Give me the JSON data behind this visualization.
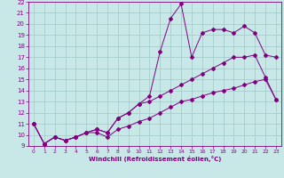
{
  "xlabel": "Windchill (Refroidissement éolien,°C)",
  "bg_color": "#c8e8e8",
  "line_color": "#800080",
  "grid_color": "#a0c8c8",
  "xlim": [
    -0.5,
    23.5
  ],
  "ylim": [
    9,
    22
  ],
  "xticks": [
    0,
    1,
    2,
    3,
    4,
    5,
    6,
    7,
    8,
    9,
    10,
    11,
    12,
    13,
    14,
    15,
    16,
    17,
    18,
    19,
    20,
    21,
    22,
    23
  ],
  "yticks": [
    9,
    10,
    11,
    12,
    13,
    14,
    15,
    16,
    17,
    18,
    19,
    20,
    21,
    22
  ],
  "line1_x": [
    0,
    1,
    2,
    3,
    4,
    5,
    6,
    7,
    8,
    9,
    10,
    11,
    12,
    13,
    14,
    15,
    16,
    17,
    18,
    19,
    20,
    21,
    22,
    23
  ],
  "line1_y": [
    11,
    9.2,
    9.8,
    9.5,
    9.8,
    10.2,
    10.5,
    10.2,
    11.5,
    12.0,
    12.8,
    13.5,
    17.5,
    20.5,
    21.8,
    17.0,
    19.2,
    19.5,
    19.5,
    19.2,
    19.8,
    19.2,
    17.2,
    17.0
  ],
  "line2_x": [
    0,
    1,
    2,
    3,
    4,
    5,
    6,
    7,
    8,
    9,
    10,
    11,
    12,
    13,
    14,
    15,
    16,
    17,
    18,
    19,
    20,
    21,
    22,
    23
  ],
  "line2_y": [
    11,
    9.2,
    9.8,
    9.5,
    9.8,
    10.2,
    10.5,
    10.2,
    11.5,
    12.0,
    12.8,
    13.0,
    13.5,
    14.0,
    14.5,
    15.0,
    15.5,
    16.0,
    16.5,
    17.0,
    17.0,
    17.2,
    15.2,
    13.2
  ],
  "line3_x": [
    0,
    1,
    2,
    3,
    4,
    5,
    6,
    7,
    8,
    9,
    10,
    11,
    12,
    13,
    14,
    15,
    16,
    17,
    18,
    19,
    20,
    21,
    22,
    23
  ],
  "line3_y": [
    11,
    9.2,
    9.8,
    9.5,
    9.8,
    10.2,
    10.2,
    9.8,
    10.5,
    10.8,
    11.2,
    11.5,
    12.0,
    12.5,
    13.0,
    13.2,
    13.5,
    13.8,
    14.0,
    14.2,
    14.5,
    14.8,
    15.0,
    13.2
  ]
}
